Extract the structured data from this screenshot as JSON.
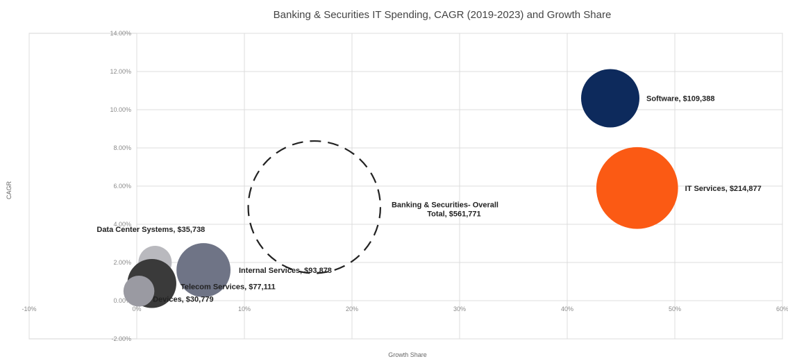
{
  "chart_data": {
    "type": "bubble",
    "title": "Banking & Securities IT Spending, CAGR (2019-2023)  and Growth Share",
    "xlabel": "Growth  Share",
    "ylabel": "CAGR",
    "xlim": [
      -10,
      60
    ],
    "ylim": [
      -2,
      14
    ],
    "x_ticks": [
      -10,
      0,
      10,
      20,
      30,
      40,
      50,
      60
    ],
    "x_tick_labels": [
      "-10%",
      "0%",
      "10%",
      "20%",
      "30%",
      "40%",
      "50%",
      "60%"
    ],
    "y_ticks": [
      -2,
      0,
      2,
      4,
      6,
      8,
      10,
      12,
      14
    ],
    "y_tick_labels": [
      "-2.00%",
      "0.00%",
      "2.00%",
      "4.00%",
      "6.00%",
      "8.00%",
      "10.00%",
      "12.00%",
      "14.00%"
    ],
    "grid": true,
    "points": [
      {
        "label": [
          "Software,  $109,388"
        ],
        "x": 44.0,
        "y": 10.6,
        "size": 109388,
        "color": "#0d2a5c",
        "dashed": false
      },
      {
        "label": [
          "IT Services,  $214,877"
        ],
        "x": 46.5,
        "y": 5.9,
        "size": 214877,
        "color": "#fb5a14",
        "dashed": false
      },
      {
        "label": [
          "Banking & Securities- Overall",
          "Total,  $561,771"
        ],
        "x": 16.5,
        "y": 4.9,
        "size": 561771,
        "color": "#222222",
        "dashed": true
      },
      {
        "label": [
          "Internal Services,  $93,878"
        ],
        "x": 6.2,
        "y": 1.6,
        "size": 93878,
        "color": "#6f7486",
        "dashed": false
      },
      {
        "label": [
          "Data Center Systems,  $35,738"
        ],
        "x": 1.7,
        "y": 2.0,
        "size": 35738,
        "color": "#b9b9be",
        "dashed": false
      },
      {
        "label": [
          "Telecom Services,  $77,111"
        ],
        "x": 1.4,
        "y": 0.9,
        "size": 77111,
        "color": "#3a3a3a",
        "dashed": false
      },
      {
        "label": [
          "Devices,  $30,779"
        ],
        "x": 0.2,
        "y": 0.5,
        "size": 30779,
        "color": "#9a9aa2",
        "dashed": false
      }
    ]
  }
}
